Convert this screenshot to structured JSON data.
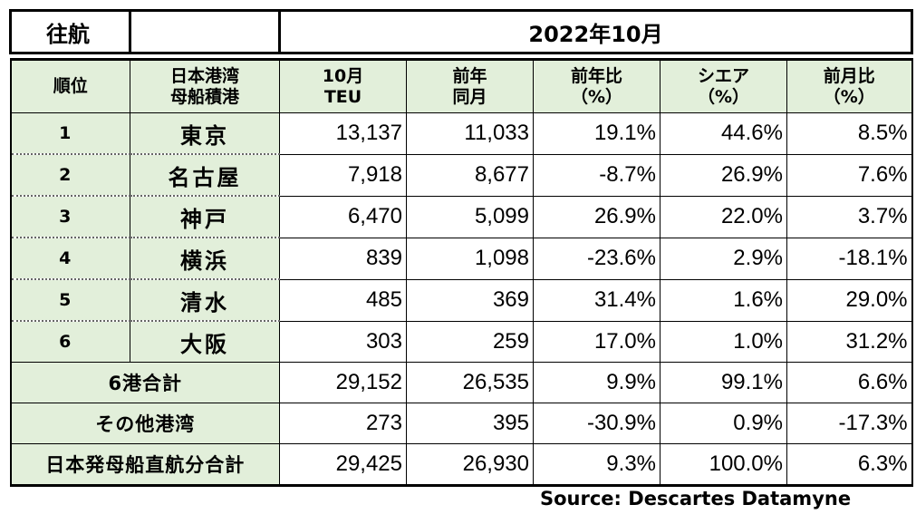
{
  "title": {
    "direction": "往航",
    "period": "2022年10月"
  },
  "headers": [
    [
      "順位"
    ],
    [
      "日本港湾",
      "母船積港"
    ],
    [
      "10月",
      "TEU"
    ],
    [
      "前年",
      "同月"
    ],
    [
      "前年比",
      "（%）"
    ],
    [
      "シエア",
      "（%）"
    ],
    [
      "前月比",
      "（%）"
    ]
  ],
  "rows": [
    {
      "rank": "1",
      "port": "東京",
      "teu": "13,137",
      "prev": "11,033",
      "yoy": "19.1%",
      "share": "44.6%",
      "mom": "8.5%"
    },
    {
      "rank": "2",
      "port": "名古屋",
      "teu": "7,918",
      "prev": "8,677",
      "yoy": "-8.7%",
      "share": "26.9%",
      "mom": "7.6%"
    },
    {
      "rank": "3",
      "port": "神戸",
      "teu": "6,470",
      "prev": "5,099",
      "yoy": "26.9%",
      "share": "22.0%",
      "mom": "3.7%"
    },
    {
      "rank": "4",
      "port": "横浜",
      "teu": "839",
      "prev": "1,098",
      "yoy": "-23.6%",
      "share": "2.9%",
      "mom": "-18.1%"
    },
    {
      "rank": "5",
      "port": "清水",
      "teu": "485",
      "prev": "369",
      "yoy": "31.4%",
      "share": "1.6%",
      "mom": "29.0%"
    },
    {
      "rank": "6",
      "port": "大阪",
      "teu": "303",
      "prev": "259",
      "yoy": "17.0%",
      "share": "1.0%",
      "mom": "31.2%"
    }
  ],
  "summary": [
    {
      "label": "6港合計",
      "teu": "29,152",
      "prev": "26,535",
      "yoy": "9.9%",
      "share": "99.1%",
      "mom": "6.6%"
    },
    {
      "label": "その他港湾",
      "teu": "273",
      "prev": "395",
      "yoy": "-30.9%",
      "share": "0.9%",
      "mom": "-17.3%"
    },
    {
      "label": "日本発母船直航分合計",
      "teu": "29,425",
      "prev": "26,930",
      "yoy": "9.3%",
      "share": "100.0%",
      "mom": "6.3%"
    }
  ],
  "source": "Source:  Descartes Datamyne",
  "colors": {
    "header_bg": "#e2efda",
    "border": "#000000"
  }
}
